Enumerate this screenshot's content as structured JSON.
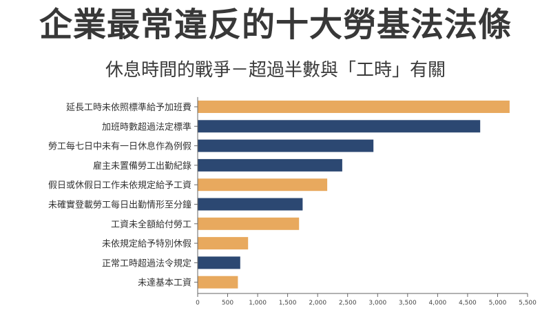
{
  "header": {
    "title": "企業最常違反的十大勞基法法條",
    "subtitle": "休息時間的戰爭－超過半數與「工時」有關"
  },
  "colors": {
    "orange": "#E8A95E",
    "navy": "#2C4872",
    "axis": "#666666"
  },
  "chart_data": {
    "type": "bar",
    "orientation": "horizontal",
    "categories": [
      "延長工時未依照標準給予加班費",
      "加班時數超過法定標準",
      "勞工每七日中未有一日休息作為例假",
      "雇主未置備勞工出勤紀錄",
      "假日或休假日工作未依規定給予工資",
      "未確實登載勞工每日出勤情形至分鐘",
      "工資未全額給付勞工",
      "未依規定給予特別休假",
      "正常工時超過法令規定",
      "未達基本工資"
    ],
    "values": [
      5200,
      4710,
      2930,
      2410,
      2160,
      1750,
      1690,
      840,
      710,
      670
    ],
    "bar_colors": [
      "orange",
      "navy",
      "navy",
      "navy",
      "orange",
      "navy",
      "orange",
      "orange",
      "navy",
      "orange"
    ],
    "xlim": [
      0,
      5500
    ],
    "xticks": [
      0,
      500,
      1000,
      1500,
      2000,
      2500,
      3000,
      3500,
      4000,
      4500,
      5000,
      5500
    ],
    "xtick_labels": [
      "0",
      "500",
      "1,000",
      "1,500",
      "2,000",
      "2,500",
      "3,000",
      "3,500",
      "4,000",
      "4,500",
      "5,000",
      "5,500"
    ],
    "xlabel": "",
    "ylabel": "",
    "grid": false
  }
}
